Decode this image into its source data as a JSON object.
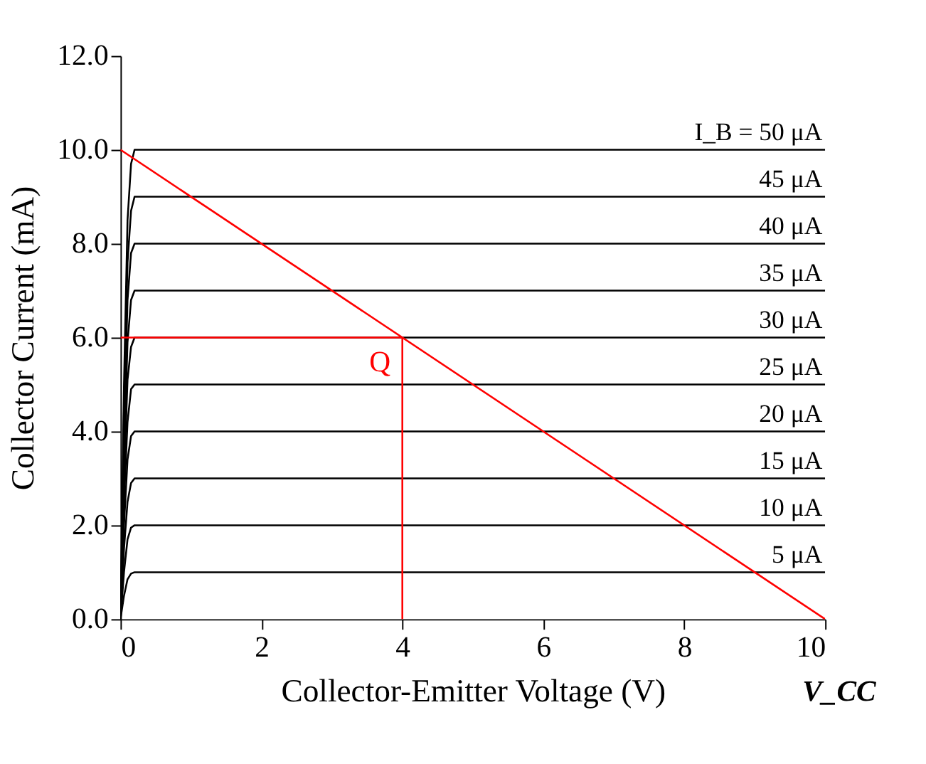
{
  "chart_data": {
    "type": "line",
    "xlabel": "Collector-Emitter Voltage (V)",
    "ylabel": "Collector Current (mA)",
    "xlim": [
      0,
      10
    ],
    "ylim": [
      0,
      12
    ],
    "xticks": [
      0,
      2,
      4,
      6,
      8,
      10
    ],
    "yticks": [
      {
        "value": 0,
        "label": "0.0"
      },
      {
        "value": 2,
        "label": "2.0"
      },
      {
        "value": 4,
        "label": "4.0"
      },
      {
        "value": 6,
        "label": "6.0"
      },
      {
        "value": 8,
        "label": "8.0"
      },
      {
        "value": 10,
        "label": "10.0"
      },
      {
        "value": 12,
        "label": "12.0"
      }
    ],
    "grid": false,
    "marker": "none",
    "line_style": "solid",
    "series": [
      {
        "name": "5 μA",
        "color": "#000000",
        "x": [
          0,
          0.05,
          0.1,
          0.15,
          0.2,
          10
        ],
        "values": [
          0,
          0.5,
          0.85,
          0.97,
          1,
          1
        ]
      },
      {
        "name": "10 μA",
        "color": "#000000",
        "x": [
          0,
          0.05,
          0.1,
          0.15,
          0.2,
          10
        ],
        "values": [
          0,
          1,
          1.7,
          1.95,
          2,
          2
        ]
      },
      {
        "name": "15 μA",
        "color": "#000000",
        "x": [
          0,
          0.05,
          0.1,
          0.15,
          0.2,
          10
        ],
        "values": [
          0,
          1.5,
          2.5,
          2.9,
          3,
          3
        ]
      },
      {
        "name": "20 μA",
        "color": "#000000",
        "x": [
          0,
          0.05,
          0.1,
          0.15,
          0.2,
          10
        ],
        "values": [
          0,
          2,
          3.4,
          3.9,
          4,
          4
        ]
      },
      {
        "name": "25 μA",
        "color": "#000000",
        "x": [
          0,
          0.05,
          0.1,
          0.15,
          0.2,
          10
        ],
        "values": [
          0,
          2.5,
          4.2,
          4.9,
          5,
          5
        ]
      },
      {
        "name": "30 μA",
        "color": "#000000",
        "x": [
          0,
          0.05,
          0.1,
          0.15,
          0.2,
          10
        ],
        "values": [
          0,
          3,
          5.1,
          5.8,
          6,
          6
        ]
      },
      {
        "name": "35 μA",
        "color": "#000000",
        "x": [
          0,
          0.05,
          0.1,
          0.15,
          0.2,
          10
        ],
        "values": [
          0,
          3.5,
          5.9,
          6.8,
          7,
          7
        ]
      },
      {
        "name": "40 μA",
        "color": "#000000",
        "x": [
          0,
          0.05,
          0.1,
          0.15,
          0.2,
          10
        ],
        "values": [
          0,
          4,
          6.8,
          7.8,
          8,
          8
        ]
      },
      {
        "name": "45 μA",
        "color": "#000000",
        "x": [
          0,
          0.05,
          0.1,
          0.15,
          0.2,
          10
        ],
        "values": [
          0,
          4.5,
          7.6,
          8.7,
          9,
          9
        ]
      },
      {
        "name": "I_B = 50 μA",
        "color": "#000000",
        "x": [
          0,
          0.05,
          0.1,
          0.15,
          0.2,
          10
        ],
        "values": [
          0,
          5,
          8.5,
          9.7,
          10,
          10
        ]
      },
      {
        "type": "line",
        "color": "#ff0000",
        "x": [
          0,
          10
        ],
        "values": [
          10,
          0
        ]
      },
      {
        "type": "line",
        "color": "#ff0000",
        "x": [
          0,
          4
        ],
        "values": [
          6,
          6
        ]
      },
      {
        "type": "line",
        "color": "#ff0000",
        "x": [
          4,
          4
        ],
        "values": [
          0,
          6
        ]
      }
    ],
    "annotations": [
      {
        "text": "Q",
        "x": 4,
        "y": 6
      },
      {
        "text": "V_CC",
        "x": 10,
        "y": 0
      }
    ]
  }
}
